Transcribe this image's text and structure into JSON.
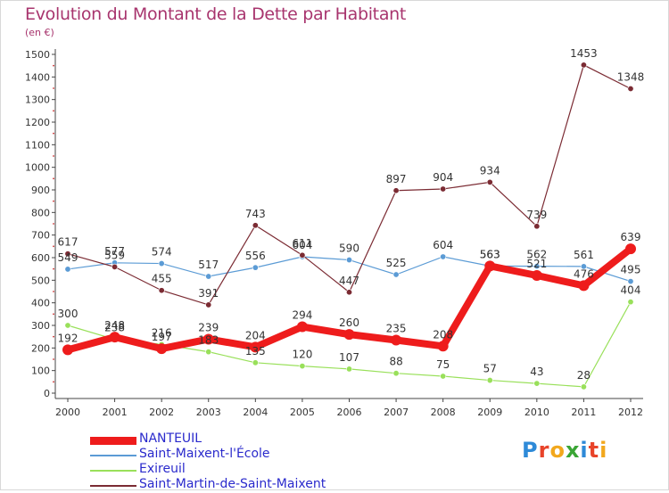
{
  "title": "Evolution du Montant de la Dette par Habitant",
  "unit": "(en €)",
  "logo": {
    "text": "Proxiti",
    "letters": [
      {
        "ch": "P",
        "color": "#2e8ad8"
      },
      {
        "ch": "r",
        "color": "#e8442a"
      },
      {
        "ch": "o",
        "color": "#f2a81d"
      },
      {
        "ch": "x",
        "color": "#3aa535"
      },
      {
        "ch": "i",
        "color": "#2e8ad8"
      },
      {
        "ch": "t",
        "color": "#e8442a"
      },
      {
        "ch": "i",
        "color": "#f2a81d"
      }
    ]
  },
  "chart_data": {
    "type": "line",
    "title": "Evolution du Montant de la Dette par Habitant",
    "ylabel": "(en €)",
    "xlabel": "",
    "x": [
      "2000",
      "2001",
      "2002",
      "2003",
      "2004",
      "2005",
      "2006",
      "2007",
      "2008",
      "2009",
      "2010",
      "2011",
      "2012"
    ],
    "ylim": [
      0,
      1500
    ],
    "yticks": [
      0,
      100,
      200,
      300,
      400,
      500,
      600,
      700,
      800,
      900,
      1000,
      1100,
      1200,
      1300,
      1400,
      1500
    ],
    "grid": false,
    "legend_position": "bottom-left",
    "series": [
      {
        "name": "NANTEUIL",
        "color": "#ee1c1c",
        "thick": true,
        "values": [
          192,
          248,
          197,
          239,
          204,
          294,
          260,
          235,
          208,
          563,
          521,
          476,
          639
        ],
        "labels": [
          "192",
          "248",
          "197",
          "239",
          "204",
          "294",
          "260",
          "235",
          "208",
          "563",
          "521",
          "476",
          "639"
        ]
      },
      {
        "name": "Saint-Maixent-l'École",
        "color": "#5b9bd5",
        "thick": false,
        "values": [
          549,
          577,
          574,
          517,
          556,
          604,
          590,
          525,
          604,
          563,
          562,
          561,
          495
        ],
        "labels": [
          "549",
          "577",
          "574",
          "517",
          "556",
          "604",
          "590",
          "525",
          "604",
          "563",
          "562",
          "561",
          "495"
        ]
      },
      {
        "name": "Exireuil",
        "color": "#99e05a",
        "thick": false,
        "values": [
          300,
          238,
          216,
          183,
          135,
          120,
          107,
          88,
          75,
          57,
          43,
          28,
          404
        ],
        "labels": [
          "300",
          "238",
          "216",
          "183",
          "135",
          "120",
          "107",
          "88",
          "75",
          "57",
          "43",
          "28",
          "404"
        ]
      },
      {
        "name": "Saint-Martin-de-Saint-Maixent",
        "color": "#7b2b33",
        "thick": false,
        "values": [
          617,
          559,
          455,
          391,
          743,
          611,
          447,
          897,
          904,
          934,
          739,
          1453,
          1348
        ],
        "labels": [
          "617",
          "559",
          "455",
          "391",
          "743",
          "611",
          "447",
          "897",
          "904",
          "934",
          "739",
          "1453",
          "1348"
        ]
      }
    ]
  }
}
